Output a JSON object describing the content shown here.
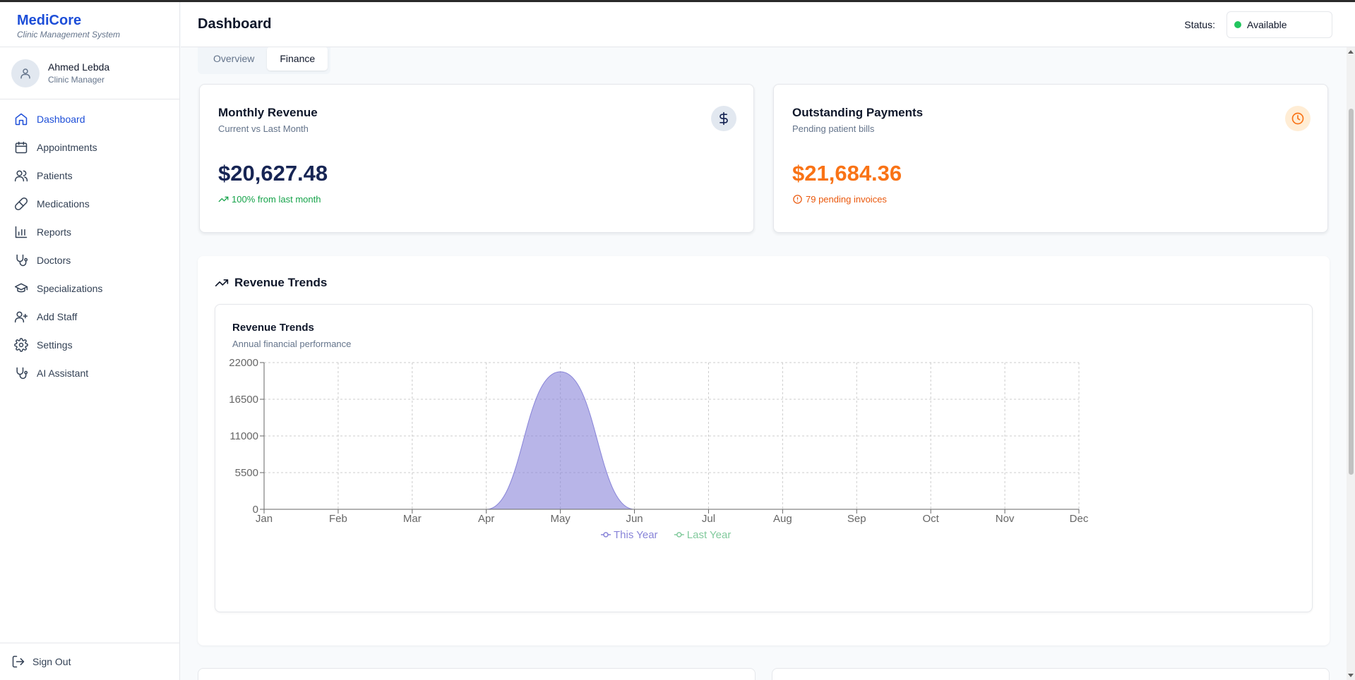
{
  "app": {
    "name": "MediCore",
    "subtitle": "Clinic Management System"
  },
  "user": {
    "name": "Ahmed Lebda",
    "role": "Clinic Manager"
  },
  "sidebar": {
    "items": [
      {
        "label": "Dashboard",
        "icon": "home-icon",
        "active": true
      },
      {
        "label": "Appointments",
        "icon": "calendar-icon"
      },
      {
        "label": "Patients",
        "icon": "users-icon"
      },
      {
        "label": "Medications",
        "icon": "pill-icon"
      },
      {
        "label": "Reports",
        "icon": "bar-chart-icon"
      },
      {
        "label": "Doctors",
        "icon": "stethoscope-icon"
      },
      {
        "label": "Specializations",
        "icon": "graduation-cap-icon"
      },
      {
        "label": "Add Staff",
        "icon": "user-plus-icon"
      },
      {
        "label": "Settings",
        "icon": "gear-icon"
      },
      {
        "label": "AI Assistant",
        "icon": "stethoscope-icon"
      }
    ],
    "signout": "Sign Out"
  },
  "header": {
    "title": "Dashboard",
    "status_label": "Status:",
    "status_value": "Available",
    "status_color": "#22c55e"
  },
  "tabs": [
    {
      "label": "Overview"
    },
    {
      "label": "Finance",
      "active": true
    }
  ],
  "cards": {
    "revenue": {
      "title": "Monthly Revenue",
      "subtitle": "Current vs Last Month",
      "value": "$20,627.48",
      "note": "100% from last month",
      "icon": "dollar-icon",
      "value_color": "#172554",
      "note_color": "#16a34a"
    },
    "outstanding": {
      "title": "Outstanding Payments",
      "subtitle": "Pending patient bills",
      "value": "$21,684.36",
      "note": "79 pending invoices",
      "icon": "clock-icon",
      "value_color": "#f97316",
      "note_color": "#ea580c"
    }
  },
  "section": {
    "title": "Revenue Trends"
  },
  "chart": {
    "title": "Revenue Trends",
    "subtitle": "Annual financial performance"
  },
  "chart_data": {
    "type": "area",
    "title": "Revenue Trends",
    "subtitle": "Annual financial performance",
    "categories": [
      "Jan",
      "Feb",
      "Mar",
      "Apr",
      "May",
      "Jun",
      "Jul",
      "Aug",
      "Sep",
      "Oct",
      "Nov",
      "Dec"
    ],
    "series": [
      {
        "name": "This Year",
        "color": "#8884d8",
        "values": [
          0,
          0,
          0,
          0,
          20627.48,
          0,
          0,
          0,
          0,
          0,
          0,
          0
        ]
      },
      {
        "name": "Last Year",
        "color": "#82ca9d",
        "values": [
          0,
          0,
          0,
          0,
          0,
          0,
          0,
          0,
          0,
          0,
          0,
          0
        ]
      }
    ],
    "yticks": [
      0,
      5500,
      11000,
      16500,
      22000
    ],
    "ylim": [
      0,
      22000
    ],
    "grid": true,
    "legend": "bottom-center"
  }
}
